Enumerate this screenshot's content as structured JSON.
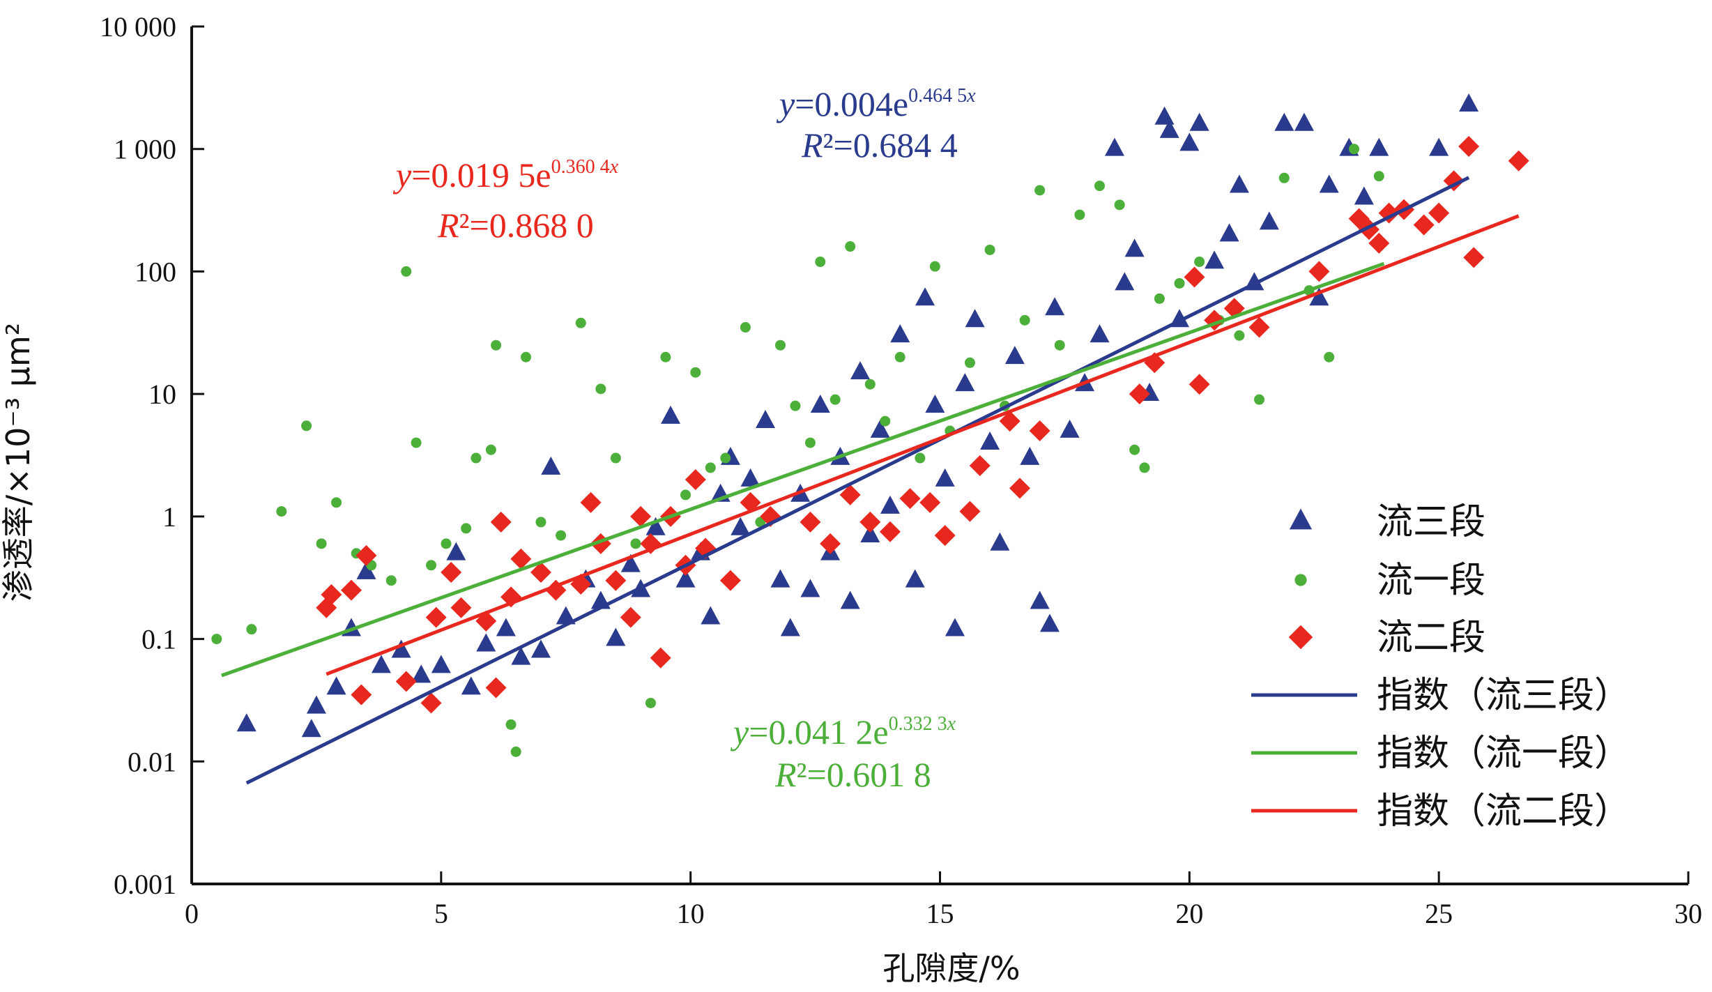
{
  "chart_data": {
    "type": "scatter",
    "xlabel": "孔隙度/%",
    "ylabel": "渗透率/×10⁻³ μm²",
    "xlim": [
      0,
      30
    ],
    "ylim": [
      0.001,
      10000
    ],
    "yscale": "log",
    "grid": false,
    "legend_position": "bottom-right",
    "x_ticks": [
      "0",
      "5",
      "10",
      "15",
      "20",
      "25",
      "30"
    ],
    "y_ticks": [
      "0.001",
      "0.01",
      "0.1",
      "1",
      "10",
      "100",
      "1 000",
      "10 000"
    ],
    "colors": {
      "blue": "#2a3a8c",
      "green": "#4caf3a",
      "red": "#e8281e"
    },
    "legend": [
      {
        "label": "流三段",
        "kind": "triangle",
        "color": "#2a3a8c"
      },
      {
        "label": "流一段",
        "kind": "dot",
        "color": "#4caf3a"
      },
      {
        "label": "流二段",
        "kind": "diamond",
        "color": "#e8281e"
      },
      {
        "label": "指数（流三段）",
        "kind": "line",
        "color": "#2a3a8c"
      },
      {
        "label": "指数（流一段）",
        "kind": "line",
        "color": "#4caf3a"
      },
      {
        "label": "指数（流二段）",
        "kind": "line",
        "color": "#e8281e"
      }
    ],
    "series": [
      {
        "name": "流三段",
        "marker": "triangle",
        "color": "#2a3a8c",
        "points": [
          [
            1.1,
            0.02
          ],
          [
            2.4,
            0.018
          ],
          [
            2.5,
            0.028
          ],
          [
            2.9,
            0.04
          ],
          [
            3.2,
            0.12
          ],
          [
            3.5,
            0.35
          ],
          [
            3.8,
            0.06
          ],
          [
            4.2,
            0.08
          ],
          [
            4.6,
            0.05
          ],
          [
            5.0,
            0.06
          ],
          [
            5.3,
            0.5
          ],
          [
            5.6,
            0.04
          ],
          [
            5.9,
            0.09
          ],
          [
            6.3,
            0.12
          ],
          [
            6.6,
            0.07
          ],
          [
            7.0,
            0.08
          ],
          [
            7.2,
            2.5
          ],
          [
            7.5,
            0.15
          ],
          [
            7.9,
            0.3
          ],
          [
            8.2,
            0.2
          ],
          [
            8.5,
            0.1
          ],
          [
            8.8,
            0.4
          ],
          [
            9.0,
            0.25
          ],
          [
            9.3,
            0.8
          ],
          [
            9.6,
            6.5
          ],
          [
            9.9,
            0.3
          ],
          [
            10.2,
            0.5
          ],
          [
            10.4,
            0.15
          ],
          [
            10.6,
            1.5
          ],
          [
            10.8,
            3.0
          ],
          [
            11.0,
            0.8
          ],
          [
            11.2,
            2.0
          ],
          [
            11.5,
            6.0
          ],
          [
            11.8,
            0.3
          ],
          [
            12.0,
            0.12
          ],
          [
            12.2,
            1.5
          ],
          [
            12.4,
            0.25
          ],
          [
            12.6,
            8.0
          ],
          [
            12.8,
            0.5
          ],
          [
            13.0,
            3.0
          ],
          [
            13.2,
            0.2
          ],
          [
            13.4,
            15
          ],
          [
            13.6,
            0.7
          ],
          [
            13.8,
            5
          ],
          [
            14.0,
            1.2
          ],
          [
            14.2,
            30
          ],
          [
            14.5,
            0.3
          ],
          [
            14.7,
            60
          ],
          [
            14.9,
            8
          ],
          [
            15.1,
            2
          ],
          [
            15.3,
            0.12
          ],
          [
            15.5,
            12
          ],
          [
            15.7,
            40
          ],
          [
            16.0,
            4
          ],
          [
            16.2,
            0.6
          ],
          [
            16.5,
            20
          ],
          [
            16.8,
            3
          ],
          [
            17.0,
            0.2
          ],
          [
            17.2,
            0.13
          ],
          [
            17.3,
            50
          ],
          [
            17.6,
            5
          ],
          [
            17.9,
            12
          ],
          [
            18.2,
            30
          ],
          [
            18.5,
            1000
          ],
          [
            18.7,
            80
          ],
          [
            18.9,
            150
          ],
          [
            19.2,
            10
          ],
          [
            19.5,
            1800
          ],
          [
            19.6,
            1400
          ],
          [
            19.8,
            40
          ],
          [
            20.0,
            1100
          ],
          [
            20.2,
            1600
          ],
          [
            20.5,
            120
          ],
          [
            20.8,
            200
          ],
          [
            21.0,
            500
          ],
          [
            21.3,
            80
          ],
          [
            21.6,
            250
          ],
          [
            21.9,
            1600
          ],
          [
            22.3,
            1600
          ],
          [
            22.6,
            60
          ],
          [
            22.8,
            500
          ],
          [
            23.2,
            1000
          ],
          [
            23.5,
            400
          ],
          [
            23.8,
            1000
          ],
          [
            25.0,
            1000
          ],
          [
            25.6,
            2300
          ]
        ]
      },
      {
        "name": "流一段",
        "marker": "dot",
        "color": "#4caf3a",
        "points": [
          [
            0.5,
            0.1
          ],
          [
            1.2,
            0.12
          ],
          [
            1.8,
            1.1
          ],
          [
            2.3,
            5.5
          ],
          [
            2.6,
            0.6
          ],
          [
            2.9,
            1.3
          ],
          [
            3.3,
            0.5
          ],
          [
            3.6,
            0.4
          ],
          [
            4.0,
            0.3
          ],
          [
            4.3,
            100
          ],
          [
            4.5,
            4.0
          ],
          [
            4.8,
            0.4
          ],
          [
            5.1,
            0.6
          ],
          [
            5.5,
            0.8
          ],
          [
            5.7,
            3.0
          ],
          [
            6.0,
            3.5
          ],
          [
            6.1,
            25
          ],
          [
            6.4,
            0.02
          ],
          [
            6.5,
            0.012
          ],
          [
            6.7,
            20
          ],
          [
            7.0,
            0.9
          ],
          [
            7.4,
            0.7
          ],
          [
            7.8,
            38
          ],
          [
            8.2,
            11
          ],
          [
            8.5,
            3
          ],
          [
            8.9,
            0.6
          ],
          [
            9.2,
            0.03
          ],
          [
            9.5,
            20
          ],
          [
            9.9,
            1.5
          ],
          [
            10.1,
            15
          ],
          [
            10.4,
            2.5
          ],
          [
            10.7,
            3
          ],
          [
            11.1,
            35
          ],
          [
            11.4,
            0.9
          ],
          [
            11.8,
            25
          ],
          [
            12.1,
            8
          ],
          [
            12.4,
            4
          ],
          [
            12.6,
            120
          ],
          [
            12.9,
            9
          ],
          [
            13.2,
            160
          ],
          [
            13.6,
            12
          ],
          [
            13.9,
            6
          ],
          [
            14.2,
            20
          ],
          [
            14.6,
            3
          ],
          [
            14.9,
            110
          ],
          [
            15.2,
            5
          ],
          [
            15.6,
            18
          ],
          [
            16.0,
            150
          ],
          [
            16.3,
            8
          ],
          [
            16.7,
            40
          ],
          [
            17.0,
            460
          ],
          [
            17.4,
            25
          ],
          [
            17.8,
            290
          ],
          [
            18.2,
            500
          ],
          [
            18.6,
            350
          ],
          [
            18.9,
            3.5
          ],
          [
            19.1,
            2.5
          ],
          [
            19.4,
            60
          ],
          [
            19.8,
            80
          ],
          [
            20.2,
            120
          ],
          [
            20.6,
            40
          ],
          [
            21.0,
            30
          ],
          [
            21.4,
            9
          ],
          [
            21.9,
            580
          ],
          [
            22.4,
            70
          ],
          [
            22.8,
            20
          ],
          [
            23.3,
            1000
          ],
          [
            23.8,
            600
          ]
        ]
      },
      {
        "name": "流二段",
        "marker": "diamond",
        "color": "#e8281e",
        "points": [
          [
            2.7,
            0.18
          ],
          [
            2.8,
            0.23
          ],
          [
            3.2,
            0.25
          ],
          [
            3.4,
            0.035
          ],
          [
            3.5,
            0.48
          ],
          [
            4.3,
            0.045
          ],
          [
            4.8,
            0.03
          ],
          [
            4.9,
            0.15
          ],
          [
            5.2,
            0.35
          ],
          [
            5.4,
            0.18
          ],
          [
            5.9,
            0.14
          ],
          [
            6.1,
            0.04
          ],
          [
            6.2,
            0.9
          ],
          [
            6.4,
            0.22
          ],
          [
            6.6,
            0.45
          ],
          [
            7.0,
            0.35
          ],
          [
            7.3,
            0.25
          ],
          [
            7.8,
            0.28
          ],
          [
            8.0,
            1.3
          ],
          [
            8.2,
            0.6
          ],
          [
            8.5,
            0.3
          ],
          [
            8.8,
            0.15
          ],
          [
            9.0,
            1.0
          ],
          [
            9.2,
            0.6
          ],
          [
            9.4,
            0.07
          ],
          [
            9.6,
            1.0
          ],
          [
            9.9,
            0.4
          ],
          [
            10.1,
            2.0
          ],
          [
            10.3,
            0.55
          ],
          [
            10.8,
            0.3
          ],
          [
            11.2,
            1.3
          ],
          [
            11.6,
            1.0
          ],
          [
            12.4,
            0.9
          ],
          [
            12.8,
            0.6
          ],
          [
            13.2,
            1.5
          ],
          [
            13.6,
            0.9
          ],
          [
            14.0,
            0.75
          ],
          [
            14.4,
            1.4
          ],
          [
            14.8,
            1.3
          ],
          [
            15.1,
            0.7
          ],
          [
            15.6,
            1.1
          ],
          [
            15.8,
            2.6
          ],
          [
            16.4,
            6.0
          ],
          [
            16.6,
            1.7
          ],
          [
            17.0,
            5.0
          ],
          [
            19.0,
            10
          ],
          [
            19.3,
            18
          ],
          [
            20.1,
            90
          ],
          [
            20.2,
            12
          ],
          [
            20.5,
            40
          ],
          [
            20.9,
            50
          ],
          [
            21.4,
            35
          ],
          [
            22.6,
            100
          ],
          [
            23.4,
            270
          ],
          [
            23.6,
            220
          ],
          [
            23.8,
            170
          ],
          [
            24.0,
            300
          ],
          [
            24.3,
            320
          ],
          [
            24.7,
            240
          ],
          [
            25.0,
            300
          ],
          [
            25.3,
            550
          ],
          [
            25.6,
            1050
          ],
          [
            25.7,
            130
          ],
          [
            26.6,
            800
          ]
        ]
      }
    ],
    "fits": [
      {
        "series": "流三段",
        "color": "#2a3a8c",
        "a": 0.004,
        "b": 0.4645,
        "x_range": [
          1.1,
          25.6
        ],
        "equation_lead": "y",
        "equation_main": "=0.004e",
        "equation_exp": "0.464 5",
        "equation_exp_var": "x",
        "r2_lead": "R",
        "r2_main": "²=0.684 4"
      },
      {
        "series": "流一段",
        "color": "#4caf3a",
        "a": 0.0412,
        "b": 0.3323,
        "x_range": [
          0.6,
          23.9
        ],
        "equation_lead": "y",
        "equation_main": "=0.041 2e",
        "equation_exp": "0.332 3",
        "equation_exp_var": "x",
        "r2_lead": "R",
        "r2_main": "²=0.601 8"
      },
      {
        "series": "流二段",
        "color": "#e8281e",
        "a": 0.0195,
        "b": 0.3604,
        "x_range": [
          2.7,
          26.6
        ],
        "equation_lead": "y",
        "equation_main": "=0.019 5e",
        "equation_exp": "0.360 4",
        "equation_exp_var": "x",
        "r2_lead": "R",
        "r2_main": "²=0.868 0"
      }
    ]
  }
}
